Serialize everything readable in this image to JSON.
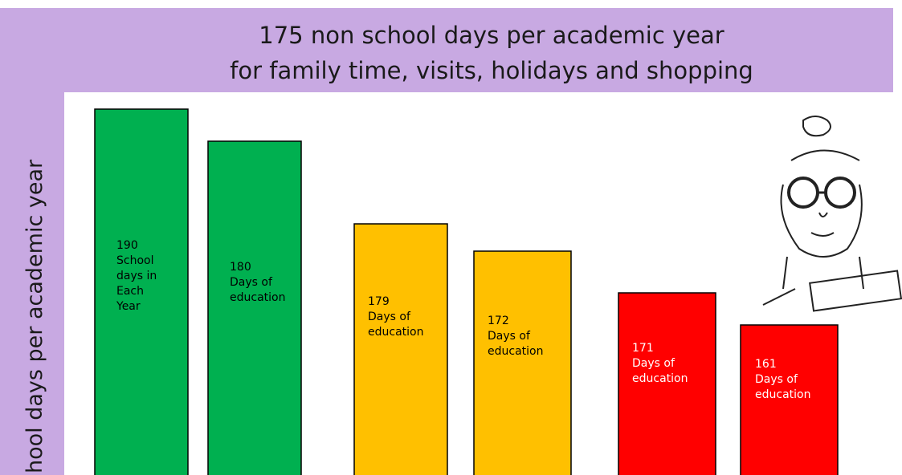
{
  "header": {
    "title_lines": [
      "175 non school days per academic  year",
      "for family time, visits, holidays and shopping"
    ]
  },
  "side_label": "hool days per academic year",
  "bars": [
    {
      "lines": [
        "190",
        "School",
        "days in",
        "Each",
        "Year"
      ]
    },
    {
      "lines": [
        "180",
        "Days of",
        "education"
      ]
    },
    {
      "lines": [
        "179",
        "Days of",
        "education"
      ]
    },
    {
      "lines": [
        "172",
        "Days of",
        "education"
      ]
    },
    {
      "lines": [
        "171",
        "Days of",
        "education"
      ]
    },
    {
      "lines": [
        "161",
        "Days of",
        "education"
      ]
    }
  ]
}
